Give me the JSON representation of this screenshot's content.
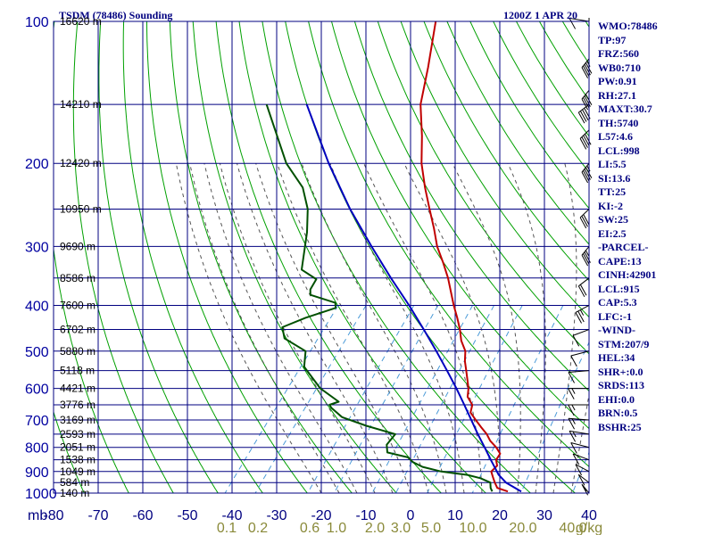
{
  "header": {
    "title": "TSDM (78486) Sounding",
    "time": "1200Z  1 APR 20"
  },
  "parameters": [
    "WMO:78486",
    "TP:97",
    "FRZ:560",
    "WB0:710",
    "PW:0.91",
    "RH:27.1",
    "MAXT:30.7",
    "TH:5740",
    "L57:4.6",
    "LCL:998",
    "LI:5.5",
    "SI:13.6",
    "TT:25",
    "KI:-2",
    "SW:25",
    "EI:2.5",
    "-PARCEL-",
    "CAPE:13",
    "CINH:42901",
    "LCL:915",
    "CAP:5.3",
    "LFC:-1",
    "-WIND-",
    "STM:207/9",
    "HEL:34",
    "SHR+:0.0",
    "SRDS:113",
    "EHI:0.0",
    "BRN:0.5",
    "BSHR:25"
  ],
  "colors": {
    "temperature": "#c00000",
    "dewpoint": "#005000",
    "parcel": "#0000c0",
    "grid": "#000080",
    "dry_adiabat": "#00a000",
    "moist_adiabat": "#555555",
    "mixing_ratio": "#4a9ad8",
    "wind_barb": "#000000"
  },
  "chart_data": {
    "type": "line",
    "title": "TSDM (78486) Sounding",
    "subtitle": "1200Z  1 APR 20",
    "xlabel": "",
    "ylabel": "mb",
    "y_scale": "log",
    "y_reversed": true,
    "xlim": [
      -80,
      40
    ],
    "ylim": [
      1000,
      100
    ],
    "grid": true,
    "temperature_ticks": [
      "-80",
      "-70",
      "-60",
      "-50",
      "-40",
      "-30",
      "-20",
      "-10",
      "0",
      "10",
      "20",
      "30",
      "40"
    ],
    "pressure_ticks": [
      "100",
      "200",
      "300",
      "400",
      "500",
      "600",
      "700",
      "800",
      "900",
      "1000"
    ],
    "y_axis_unit_label": "mb",
    "mixing_ratio_labels": [
      "0.1",
      "0.2",
      "0.6",
      "1.0",
      "2.0",
      "3.0",
      "5.0",
      "10.0",
      "20.0",
      "40.0",
      "g/kg"
    ],
    "height_labels": [
      {
        "p": 100,
        "label": "16620 m"
      },
      {
        "p": 150,
        "label": "14210 m"
      },
      {
        "p": 200,
        "label": "12420 m"
      },
      {
        "p": 250,
        "label": "10950 m"
      },
      {
        "p": 300,
        "label": "9690 m"
      },
      {
        "p": 350,
        "label": "8586 m"
      },
      {
        "p": 400,
        "label": "7600 m"
      },
      {
        "p": 450,
        "label": "6702 m"
      },
      {
        "p": 500,
        "label": "5880 m"
      },
      {
        "p": 550,
        "label": "5118 m"
      },
      {
        "p": 600,
        "label": "4421 m"
      },
      {
        "p": 650,
        "label": "3776 m"
      },
      {
        "p": 700,
        "label": "3169 m"
      },
      {
        "p": 750,
        "label": "2593 m"
      },
      {
        "p": 800,
        "label": "2051 m"
      },
      {
        "p": 850,
        "label": "1538 m"
      },
      {
        "p": 900,
        "label": "1049 m"
      },
      {
        "p": 950,
        "label": "584 m"
      },
      {
        "p": 1000,
        "label": "140 m"
      }
    ],
    "series": [
      {
        "name": "Temperature",
        "color": "#c00000",
        "points": [
          {
            "p": 992,
            "t": 21.5
          },
          {
            "p": 975,
            "t": 18.5
          },
          {
            "p": 950,
            "t": 17.0
          },
          {
            "p": 925,
            "t": 15.6
          },
          {
            "p": 900,
            "t": 14.2
          },
          {
            "p": 875,
            "t": 14.5
          },
          {
            "p": 850,
            "t": 13.2
          },
          {
            "p": 825,
            "t": 13.0
          },
          {
            "p": 800,
            "t": 11.0
          },
          {
            "p": 775,
            "t": 8.5
          },
          {
            "p": 750,
            "t": 6.5
          },
          {
            "p": 725,
            "t": 4.0
          },
          {
            "p": 700,
            "t": 1.5
          },
          {
            "p": 675,
            "t": -1.0
          },
          {
            "p": 650,
            "t": -2.0
          },
          {
            "p": 625,
            "t": -4.5
          },
          {
            "p": 600,
            "t": -5.8
          },
          {
            "p": 575,
            "t": -7.6
          },
          {
            "p": 550,
            "t": -9.5
          },
          {
            "p": 525,
            "t": -11.5
          },
          {
            "p": 500,
            "t": -13.2
          },
          {
            "p": 475,
            "t": -16.0
          },
          {
            "p": 450,
            "t": -18.3
          },
          {
            "p": 425,
            "t": -21.0
          },
          {
            "p": 400,
            "t": -24.0
          },
          {
            "p": 375,
            "t": -27.0
          },
          {
            "p": 350,
            "t": -30.2
          },
          {
            "p": 325,
            "t": -34.0
          },
          {
            "p": 300,
            "t": -38.3
          },
          {
            "p": 275,
            "t": -42.2
          },
          {
            "p": 250,
            "t": -46.7
          },
          {
            "p": 225,
            "t": -51.6
          },
          {
            "p": 200,
            "t": -56.7
          },
          {
            "p": 175,
            "t": -61.5
          },
          {
            "p": 150,
            "t": -67.5
          },
          {
            "p": 125,
            "t": -72.5
          },
          {
            "p": 100,
            "t": -79.0
          }
        ]
      },
      {
        "name": "Dewpoint",
        "color": "#005000",
        "points": [
          {
            "p": 992,
            "t": 18.0
          },
          {
            "p": 975,
            "t": 17.0
          },
          {
            "p": 950,
            "t": 16.0
          },
          {
            "p": 930,
            "t": 13.0
          },
          {
            "p": 915,
            "t": 9.5
          },
          {
            "p": 900,
            "t": 3.0
          },
          {
            "p": 880,
            "t": -2.0
          },
          {
            "p": 860,
            "t": -5.0
          },
          {
            "p": 840,
            "t": -7.0
          },
          {
            "p": 820,
            "t": -12.5
          },
          {
            "p": 790,
            "t": -14.0
          },
          {
            "p": 750,
            "t": -14.0
          },
          {
            "p": 720,
            "t": -22.0
          },
          {
            "p": 690,
            "t": -29.0
          },
          {
            "p": 660,
            "t": -33.0
          },
          {
            "p": 650,
            "t": -34.0
          },
          {
            "p": 640,
            "t": -32.5
          },
          {
            "p": 600,
            "t": -39.0
          },
          {
            "p": 540,
            "t": -46.5
          },
          {
            "p": 500,
            "t": -49.0
          },
          {
            "p": 470,
            "t": -56.0
          },
          {
            "p": 445,
            "t": -58.5
          },
          {
            "p": 425,
            "t": -55.0
          },
          {
            "p": 405,
            "t": -50.0
          },
          {
            "p": 395,
            "t": -51.0
          },
          {
            "p": 380,
            "t": -58.0
          },
          {
            "p": 370,
            "t": -59.0
          },
          {
            "p": 352,
            "t": -59.5
          },
          {
            "p": 336,
            "t": -64.5
          },
          {
            "p": 280,
            "t": -70.0
          },
          {
            "p": 250,
            "t": -74.0
          },
          {
            "p": 225,
            "t": -79.0
          },
          {
            "p": 200,
            "t": -87.0
          },
          {
            "p": 150,
            "t": -102.0
          }
        ]
      },
      {
        "name": "Parcel",
        "color": "#0000c0",
        "points": [
          {
            "p": 992,
            "t": 24.5
          },
          {
            "p": 950,
            "t": 19.5
          },
          {
            "p": 915,
            "t": 16.5
          },
          {
            "p": 850,
            "t": 12.0
          },
          {
            "p": 800,
            "t": 8.4
          },
          {
            "p": 750,
            "t": 4.5
          },
          {
            "p": 700,
            "t": 0.5
          },
          {
            "p": 650,
            "t": -3.8
          },
          {
            "p": 600,
            "t": -8.5
          },
          {
            "p": 550,
            "t": -13.8
          },
          {
            "p": 500,
            "t": -19.7
          },
          {
            "p": 450,
            "t": -26.4
          },
          {
            "p": 400,
            "t": -34.0
          },
          {
            "p": 350,
            "t": -43.0
          },
          {
            "p": 300,
            "t": -53.0
          },
          {
            "p": 250,
            "t": -64.5
          },
          {
            "p": 200,
            "t": -77.5
          },
          {
            "p": 150,
            "t": -93.0
          }
        ]
      }
    ],
    "wind_barbs": [
      {
        "p": 100,
        "dir": 290,
        "spd": 10
      },
      {
        "p": 120,
        "dir": 200,
        "spd": 35
      },
      {
        "p": 140,
        "dir": 200,
        "spd": 40
      },
      {
        "p": 150,
        "dir": 210,
        "spd": 40
      },
      {
        "p": 170,
        "dir": 205,
        "spd": 40
      },
      {
        "p": 200,
        "dir": 200,
        "spd": 35
      },
      {
        "p": 250,
        "dir": 205,
        "spd": 30
      },
      {
        "p": 300,
        "dir": 200,
        "spd": 25
      },
      {
        "p": 350,
        "dir": 210,
        "spd": 20
      },
      {
        "p": 400,
        "dir": 220,
        "spd": 15
      },
      {
        "p": 450,
        "dir": 230,
        "spd": 10
      },
      {
        "p": 500,
        "dir": 240,
        "spd": 10
      },
      {
        "p": 550,
        "dir": 260,
        "spd": 10
      },
      {
        "p": 600,
        "dir": 270,
        "spd": 5
      },
      {
        "p": 650,
        "dir": 270,
        "spd": 5
      },
      {
        "p": 700,
        "dir": 280,
        "spd": 5
      },
      {
        "p": 750,
        "dir": 290,
        "spd": 5
      },
      {
        "p": 800,
        "dir": 300,
        "spd": 10
      },
      {
        "p": 850,
        "dir": 310,
        "spd": 10
      },
      {
        "p": 900,
        "dir": 320,
        "spd": 10
      },
      {
        "p": 950,
        "dir": 330,
        "spd": 10
      },
      {
        "p": 1000,
        "dir": 340,
        "spd": 5
      }
    ]
  }
}
